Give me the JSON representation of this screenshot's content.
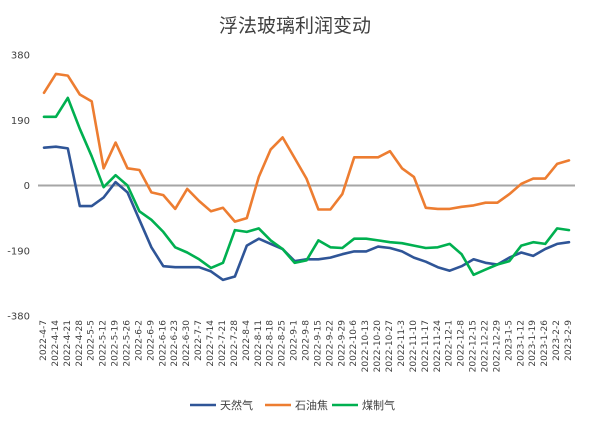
{
  "chart_data": {
    "type": "line",
    "title": "浮法玻璃利润变动",
    "xlabel": "",
    "ylabel": "",
    "ylim": [
      -380,
      380
    ],
    "yticks": [
      380,
      190,
      0,
      -190,
      -380
    ],
    "grid": false,
    "legend_position": "bottom",
    "categories": [
      "2022-4-7",
      "2022-4-14",
      "2022-4-21",
      "2022-4-28",
      "2022-5-5",
      "2022-5-12",
      "2022-5-19",
      "2022-5-26",
      "2022-6-2",
      "2022-6-9",
      "2022-6-16",
      "2022-6-23",
      "2022-6-30",
      "2022-7-7",
      "2022-7-14",
      "2022-7-21",
      "2022-7-28",
      "2022-8-4",
      "2022-8-11",
      "2022-8-18",
      "2022-8-25",
      "2022-9-1",
      "2022-9-8",
      "2022-9-15",
      "2022-9-22",
      "2022-9-29",
      "2022-10-6",
      "2022-10-13",
      "2022-10-20",
      "2022-10-27",
      "2022-11-3",
      "2022-11-10",
      "2022-11-17",
      "2022-11-24",
      "2022-12-1",
      "2022-12-8",
      "2022-12-15",
      "2022-12-22",
      "2022-12-29",
      "2023-1-5",
      "2023-1-12",
      "2023-1-19",
      "2023-1-26",
      "2023-2-2",
      "2023-2-9"
    ],
    "series": [
      {
        "name": "天然气",
        "color": "#2f5597",
        "values": [
          110,
          113,
          108,
          -60,
          -60,
          -35,
          10,
          -20,
          -100,
          -180,
          -235,
          -238,
          -238,
          -238,
          -250,
          -275,
          -265,
          -175,
          -155,
          -170,
          -185,
          -220,
          -215,
          -215,
          -210,
          -200,
          -192,
          -192,
          -178,
          -182,
          -192,
          -210,
          -222,
          -238,
          -248,
          -235,
          -215,
          -225,
          -230,
          -210,
          -195,
          -205,
          -185,
          -170,
          -165
        ]
      },
      {
        "name": "石油焦",
        "color": "#ed7d31",
        "values": [
          270,
          325,
          320,
          265,
          245,
          50,
          125,
          50,
          45,
          -20,
          -28,
          -68,
          -10,
          -45,
          -75,
          -65,
          -105,
          -95,
          25,
          105,
          140,
          80,
          20,
          -70,
          -70,
          -25,
          82,
          82,
          82,
          100,
          50,
          25,
          -65,
          -68,
          -68,
          -62,
          -58,
          -50,
          -50,
          -25,
          5,
          20,
          20,
          63,
          73
        ]
      },
      {
        "name": "煤制气",
        "color": "#00b050",
        "values": [
          200,
          200,
          255,
          165,
          85,
          -5,
          30,
          0,
          -75,
          -100,
          -135,
          -180,
          -195,
          -215,
          -240,
          -225,
          -130,
          -135,
          -125,
          -160,
          -185,
          -225,
          -218,
          -160,
          -180,
          -182,
          -155,
          -155,
          -160,
          -165,
          -168,
          -175,
          -182,
          -180,
          -170,
          -200,
          -260,
          -245,
          -230,
          -220,
          -175,
          -165,
          -170,
          -125,
          -130
        ]
      }
    ]
  }
}
